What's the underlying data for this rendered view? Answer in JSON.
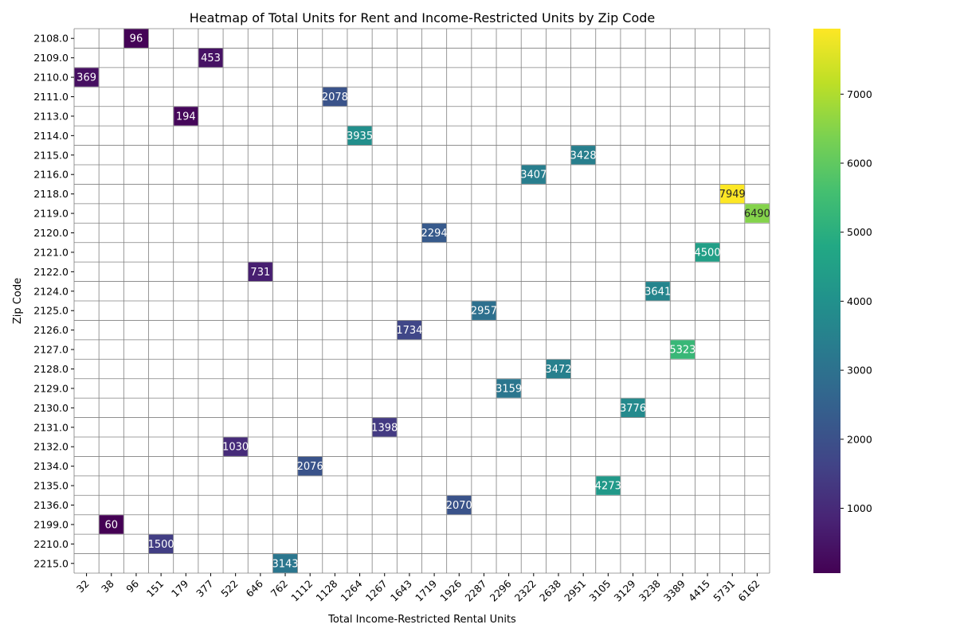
{
  "chart_data": {
    "type": "heatmap",
    "title": "Heatmap of Total Units for Rent and Income-Restricted Units by Zip Code",
    "xlabel": "Total Income-Restricted Rental Units",
    "ylabel": "Zip Code",
    "x_categories": [
      "32",
      "38",
      "96",
      "151",
      "179",
      "377",
      "522",
      "646",
      "762",
      "1112",
      "1128",
      "1264",
      "1267",
      "1643",
      "1719",
      "1926",
      "2287",
      "2296",
      "2322",
      "2638",
      "2951",
      "3105",
      "3129",
      "3238",
      "3389",
      "4415",
      "5731",
      "6162"
    ],
    "y_categories": [
      "2108.0",
      "2109.0",
      "2110.0",
      "2111.0",
      "2113.0",
      "2114.0",
      "2115.0",
      "2116.0",
      "2118.0",
      "2119.0",
      "2120.0",
      "2121.0",
      "2122.0",
      "2124.0",
      "2125.0",
      "2126.0",
      "2127.0",
      "2128.0",
      "2129.0",
      "2130.0",
      "2131.0",
      "2132.0",
      "2134.0",
      "2135.0",
      "2136.0",
      "2199.0",
      "2210.0",
      "2215.0"
    ],
    "cells": [
      {
        "y": "2108.0",
        "x": "96",
        "value": 96
      },
      {
        "y": "2109.0",
        "x": "377",
        "value": 453
      },
      {
        "y": "2110.0",
        "x": "32",
        "value": 369
      },
      {
        "y": "2111.0",
        "x": "1128",
        "value": 2078
      },
      {
        "y": "2113.0",
        "x": "179",
        "value": 194
      },
      {
        "y": "2114.0",
        "x": "1264",
        "value": 3935
      },
      {
        "y": "2115.0",
        "x": "2951",
        "value": 3428
      },
      {
        "y": "2116.0",
        "x": "2322",
        "value": 3407
      },
      {
        "y": "2118.0",
        "x": "5731",
        "value": 7949
      },
      {
        "y": "2119.0",
        "x": "6162",
        "value": 6490
      },
      {
        "y": "2120.0",
        "x": "1719",
        "value": 2294
      },
      {
        "y": "2121.0",
        "x": "4415",
        "value": 4500
      },
      {
        "y": "2122.0",
        "x": "646",
        "value": 731
      },
      {
        "y": "2124.0",
        "x": "3238",
        "value": 3641
      },
      {
        "y": "2125.0",
        "x": "2287",
        "value": 2957
      },
      {
        "y": "2126.0",
        "x": "1643",
        "value": 1734
      },
      {
        "y": "2127.0",
        "x": "3389",
        "value": 5323
      },
      {
        "y": "2128.0",
        "x": "2638",
        "value": 3472
      },
      {
        "y": "2129.0",
        "x": "2296",
        "value": 3159
      },
      {
        "y": "2130.0",
        "x": "3129",
        "value": 3776
      },
      {
        "y": "2131.0",
        "x": "1267",
        "value": 1398
      },
      {
        "y": "2132.0",
        "x": "522",
        "value": 1030
      },
      {
        "y": "2134.0",
        "x": "1112",
        "value": 2076
      },
      {
        "y": "2135.0",
        "x": "3105",
        "value": 4273
      },
      {
        "y": "2136.0",
        "x": "1926",
        "value": 2070
      },
      {
        "y": "2199.0",
        "x": "38",
        "value": 60
      },
      {
        "y": "2210.0",
        "x": "151",
        "value": 1500
      },
      {
        "y": "2215.0",
        "x": "762",
        "value": 3143
      }
    ],
    "colorbar": {
      "colormap": "viridis",
      "vmin": 60,
      "vmax": 7949,
      "ticks": [
        1000,
        2000,
        3000,
        4000,
        5000,
        6000,
        7000
      ]
    },
    "grid": true,
    "gridline_color": "#808080",
    "legend": "colorbar-right"
  }
}
